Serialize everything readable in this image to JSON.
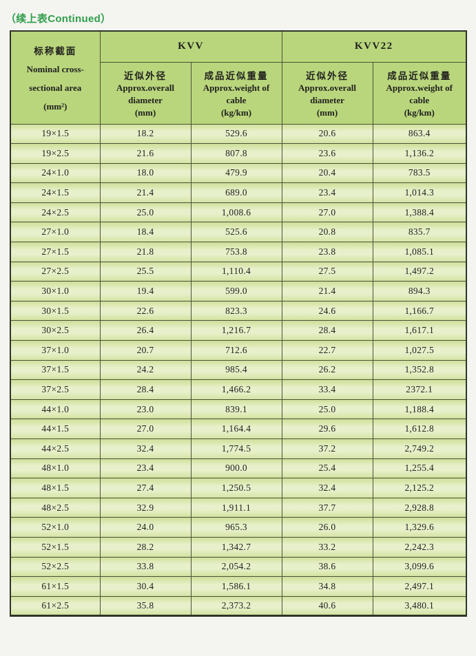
{
  "page": {
    "title": "（续上表Continued）"
  },
  "colors": {
    "page_bg": "#f4f4f1",
    "header_bg": "#b9d67c",
    "row_top": "#cfe09a",
    "row_mid": "#e7f0ca",
    "row_bot": "#d4e3a3",
    "line": "#4a5038",
    "line_dark": "#2f3427",
    "text_dark": "#21211e",
    "title_green": "#2f9e4a"
  },
  "table": {
    "nominal_header": {
      "zh": "标称截面",
      "en_line1": "Nominal cross-",
      "en_line2": "sectional area",
      "unit": "(mm²)"
    },
    "groups": [
      {
        "label": "KVV"
      },
      {
        "label": "KVV22"
      }
    ],
    "sub_columns": [
      {
        "zh": "近似外径",
        "en_line1": "Approx.overall",
        "en_line2": "diameter",
        "unit": "(mm)"
      },
      {
        "zh": "成品近似重量",
        "en_line1": "Approx.weight of",
        "en_line2": "cable",
        "unit": "(kg/km)"
      },
      {
        "zh": "近似外径",
        "en_line1": "Approx.overall",
        "en_line2": "diameter",
        "unit": "(mm)"
      },
      {
        "zh": "成品近似重量",
        "en_line1": "Approx.weight of",
        "en_line2": "cable",
        "unit": "(kg/km)"
      }
    ],
    "rows": [
      [
        "19×1.5",
        "18.2",
        "529.6",
        "20.6",
        "863.4"
      ],
      [
        "19×2.5",
        "21.6",
        "807.8",
        "23.6",
        "1,136.2"
      ],
      [
        "24×1.0",
        "18.0",
        "479.9",
        "20.4",
        "783.5"
      ],
      [
        "24×1.5",
        "21.4",
        "689.0",
        "23.4",
        "1,014.3"
      ],
      [
        "24×2.5",
        "25.0",
        "1,008.6",
        "27.0",
        "1,388.4"
      ],
      [
        "27×1.0",
        "18.4",
        "525.6",
        "20.8",
        "835.7"
      ],
      [
        "27×1.5",
        "21.8",
        "753.8",
        "23.8",
        "1,085.1"
      ],
      [
        "27×2.5",
        "25.5",
        "1,110.4",
        "27.5",
        "1,497.2"
      ],
      [
        "30×1.0",
        "19.4",
        "599.0",
        "21.4",
        "894.3"
      ],
      [
        "30×1.5",
        "22.6",
        "823.3",
        "24.6",
        "1,166.7"
      ],
      [
        "30×2.5",
        "26.4",
        "1,216.7",
        "28.4",
        "1,617.1"
      ],
      [
        "37×1.0",
        "20.7",
        "712.6",
        "22.7",
        "1,027.5"
      ],
      [
        "37×1.5",
        "24.2",
        "985.4",
        "26.2",
        "1,352.8"
      ],
      [
        "37×2.5",
        "28.4",
        "1,466.2",
        "33.4",
        "2372.1"
      ],
      [
        "44×1.0",
        "23.0",
        "839.1",
        "25.0",
        "1,188.4"
      ],
      [
        "44×1.5",
        "27.0",
        "1,164.4",
        "29.6",
        "1,612.8"
      ],
      [
        "44×2.5",
        "32.4",
        "1,774.5",
        "37.2",
        "2,749.2"
      ],
      [
        "48×1.0",
        "23.4",
        "900.0",
        "25.4",
        "1,255.4"
      ],
      [
        "48×1.5",
        "27.4",
        "1,250.5",
        "32.4",
        "2,125.2"
      ],
      [
        "48×2.5",
        "32.9",
        "1,911.1",
        "37.7",
        "2,928.8"
      ],
      [
        "52×1.0",
        "24.0",
        "965.3",
        "26.0",
        "1,329.6"
      ],
      [
        "52×1.5",
        "28.2",
        "1,342.7",
        "33.2",
        "2,242.3"
      ],
      [
        "52×2.5",
        "33.8",
        "2,054.2",
        "38.6",
        "3,099.6"
      ],
      [
        "61×1.5",
        "30.4",
        "1,586.1",
        "34.8",
        "2,497.1"
      ],
      [
        "61×2.5",
        "35.8",
        "2,373.2",
        "40.6",
        "3,480.1"
      ]
    ]
  }
}
